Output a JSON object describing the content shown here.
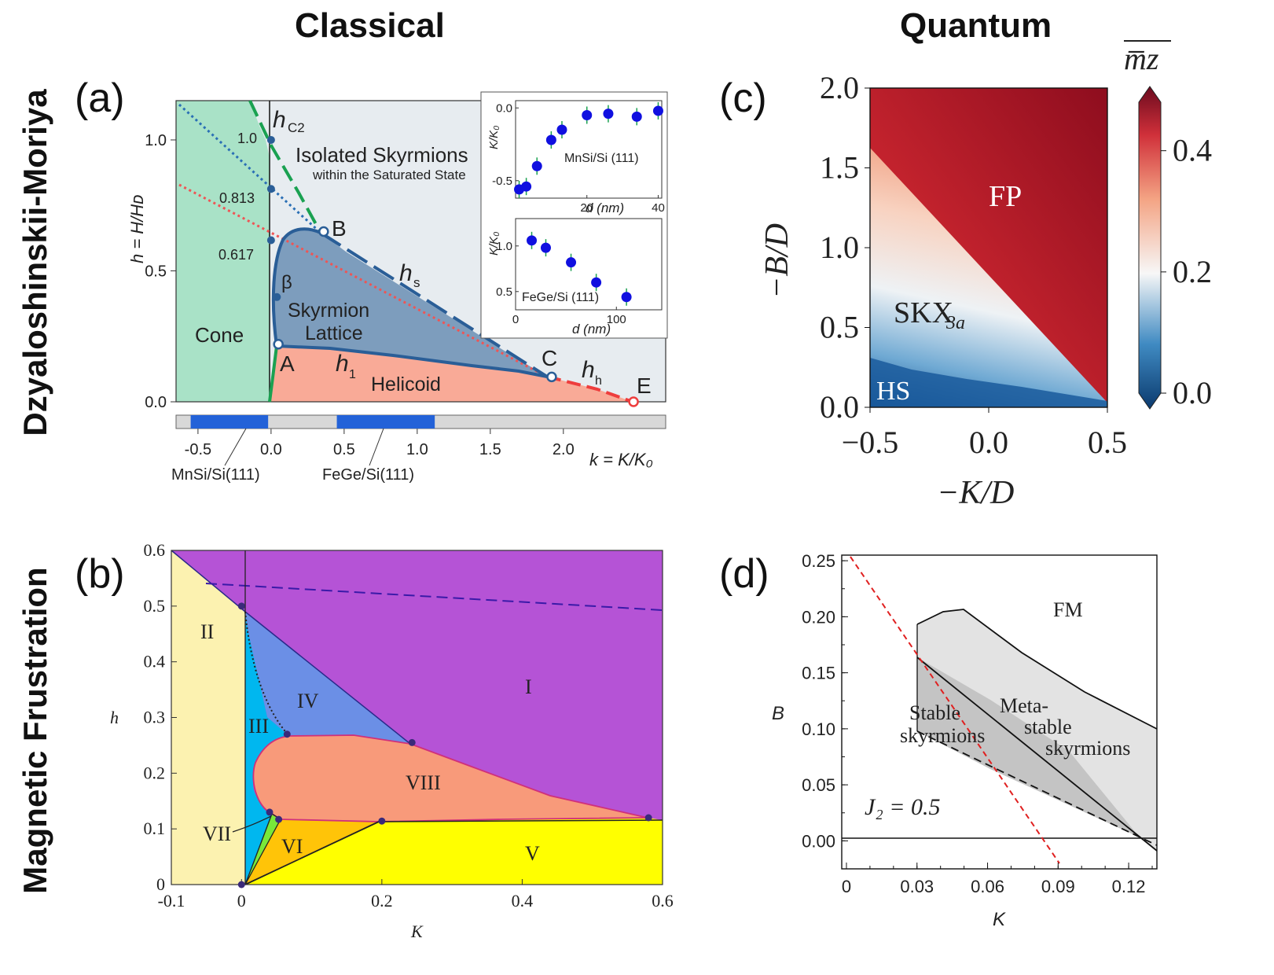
{
  "headers": {
    "classical": "Classical",
    "quantum": "Quantum"
  },
  "rows": {
    "dm": "Dzyaloshinskii-Moriya",
    "mf": "Magnetic Frustration"
  },
  "chart_data": [
    {
      "id": "a",
      "panel_label": "(a)",
      "type": "area",
      "xlabel": "k = K/K₀",
      "ylabel": "h = H/Hᴅ",
      "xlim": [
        -0.65,
        2.7
      ],
      "ylim": [
        0,
        1.15
      ],
      "xticks": [
        "-0.5",
        "0.0",
        "0.5",
        "1.0",
        "1.5",
        "2.0"
      ],
      "yticks": [
        "0.0",
        "0.5",
        "1.0"
      ],
      "regions": [
        "Cone",
        "Skyrmion",
        "Lattice",
        "Helicoid",
        "Isolated Skyrmions",
        "within  the Saturated State"
      ],
      "curve_labels": [
        "h",
        "C2",
        "h",
        "s",
        "h",
        "1",
        "h",
        "h",
        "β"
      ],
      "points": [
        {
          "label": "A",
          "k": 0.05,
          "h": 0.22
        },
        {
          "label": "B",
          "k": 0.36,
          "h": 0.65
        },
        {
          "label": "C",
          "k": 1.92,
          "h": 0.095
        },
        {
          "label": "E",
          "k": 2.48,
          "h": 0.0
        }
      ],
      "axis_marks": [
        {
          "label": "1.0",
          "h": 1.0
        },
        {
          "label": "0.813",
          "h": 0.813
        },
        {
          "label": "0.617",
          "h": 0.617
        }
      ],
      "beta_point": {
        "k": 0.04,
        "h": 0.4
      },
      "bands": [
        {
          "label": "MnSi/Si(111)",
          "range": [
            -0.55,
            -0.02
          ]
        },
        {
          "label": "FeGe/Si(111)",
          "range": [
            0.45,
            1.12
          ]
        }
      ],
      "insets": [
        {
          "label": "MnSi/Si (111)",
          "xlabel": "d (nm)",
          "ylabel": "K/K₀",
          "xticks": [
            "20",
            "40"
          ],
          "yticks": [
            "0.0",
            "-0.5"
          ],
          "xlim": [
            0,
            41
          ],
          "ylim": [
            -0.62,
            0.05
          ],
          "x": [
            1,
            3,
            6,
            10,
            13,
            20,
            26,
            34,
            40
          ],
          "y": [
            -0.56,
            -0.54,
            -0.4,
            -0.22,
            -0.15,
            -0.05,
            -0.04,
            -0.06,
            -0.02
          ]
        },
        {
          "label": "FeGe/Si (111)",
          "xlabel": "d (nm)",
          "ylabel": "K/K₀",
          "xticks": [
            "0",
            "100"
          ],
          "yticks": [
            "1.0",
            "0.5"
          ],
          "xlim": [
            0,
            145
          ],
          "ylim": [
            0.3,
            1.3
          ],
          "x": [
            16,
            30,
            55,
            80,
            110
          ],
          "y": [
            1.06,
            0.98,
            0.82,
            0.6,
            0.44
          ]
        }
      ]
    },
    {
      "id": "b",
      "panel_label": "(b)",
      "type": "area",
      "xlabel": "K",
      "ylabel": "h",
      "xlim": [
        -0.1,
        0.6
      ],
      "ylim": [
        0,
        0.6
      ],
      "xticks": [
        "-0.1",
        "0",
        "0.2",
        "0.4",
        "0.6"
      ],
      "yticks": [
        "0",
        "0.1",
        "0.2",
        "0.3",
        "0.4",
        "0.5",
        "0.6"
      ],
      "regions": [
        "I",
        "II",
        "III",
        "IV",
        "V",
        "VI",
        "VII",
        "VIII"
      ],
      "points": [
        {
          "K": 0.0,
          "h": 0.5
        },
        {
          "K": 0.065,
          "h": 0.27
        },
        {
          "K": 0.243,
          "h": 0.255
        },
        {
          "K": 0.04,
          "h": 0.13
        },
        {
          "K": 0.053,
          "h": 0.117
        },
        {
          "K": 0.2,
          "h": 0.114
        },
        {
          "K": 0.58,
          "h": 0.12
        },
        {
          "K": 0.0,
          "h": 0.0
        }
      ]
    },
    {
      "id": "c",
      "panel_label": "(c)",
      "type": "heatmap",
      "xlabel": "−K/D",
      "ylabel": "−B/D",
      "xlim": [
        -0.5,
        0.5
      ],
      "ylim": [
        0,
        2.0
      ],
      "xticks": [
        "−0.5",
        "0.0",
        "0.5"
      ],
      "yticks": [
        "0.0",
        "0.5",
        "1.0",
        "1.5",
        "2.0"
      ],
      "colorbar": {
        "label": "m̅z",
        "ticks": [
          "0.0",
          "0.2",
          "0.4"
        ],
        "range": [
          0.0,
          0.48
        ]
      },
      "regions": [
        "FP",
        "SKX",
        "3a",
        "HS"
      ]
    },
    {
      "id": "d",
      "panel_label": "(d)",
      "type": "area",
      "xlabel": "K",
      "ylabel": "B",
      "xlim": [
        -0.002,
        0.132
      ],
      "ylim": [
        -0.025,
        0.255
      ],
      "xticks": [
        "0",
        "0.03",
        "0.06",
        "0.09",
        "0.12"
      ],
      "yticks": [
        "0.00",
        "0.05",
        "0.10",
        "0.15",
        "0.20",
        "0.25"
      ],
      "regions": [
        "FM",
        "Stable",
        "skyrmions",
        "Meta-",
        "stable",
        "skyrmions"
      ],
      "annotation": "J₂ = 0.5",
      "red_line": {
        "K": [
          0.0,
          0.09
        ],
        "B": [
          0.25,
          -0.01
        ]
      }
    }
  ],
  "colors": {
    "cone": "#a9e2c7",
    "skx": "#7d9dbd",
    "helicoid": "#f9aa97",
    "sat": "#e7ecf0",
    "band": "#2362d8",
    "dark_blue": "#2a5e97",
    "green_dash": "#1aa151",
    "red": "#ee3d3d",
    "purple": "#b553d6",
    "yellow": "#ffff00",
    "cream": "#fcf2b0",
    "cyan": "#00b7ef",
    "cornflower": "#6b8fe6",
    "salmon": "#f89a7a",
    "gold": "#ffc408",
    "lime": "#79e83a",
    "fp": "#a8121f",
    "hs": "#0e4a8c",
    "grey_region": "#e3e3e3",
    "dark_grey": "#c4c4c4"
  }
}
